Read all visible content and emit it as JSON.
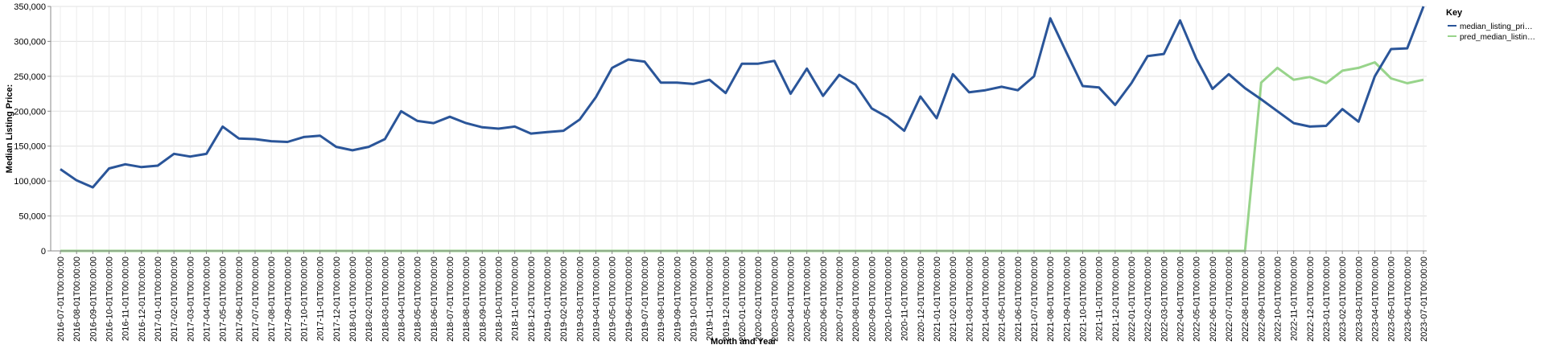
{
  "chart_data": {
    "type": "line",
    "xlabel": "Month and Year",
    "ylabel": "Median Listing Price:",
    "ylim": [
      0,
      350000
    ],
    "y_ticks": [
      "0",
      "50,000",
      "100,000",
      "150,000",
      "200,000",
      "250,000",
      "300,000",
      "350,000"
    ],
    "y_tick_values": [
      0,
      50000,
      100000,
      150000,
      200000,
      250000,
      300000,
      350000
    ],
    "grid": true,
    "legend": {
      "title": "Key",
      "placement": "top-right",
      "entries": [
        "median_listing_pri…",
        "pred_median_listin…"
      ]
    },
    "x": [
      "2016-07-01T00:00:00",
      "2016-08-01T00:00:00",
      "2016-09-01T00:00:00",
      "2016-10-01T00:00:00",
      "2016-11-01T00:00:00",
      "2016-12-01T00:00:00",
      "2017-01-01T00:00:00",
      "2017-02-01T00:00:00",
      "2017-03-01T00:00:00",
      "2017-04-01T00:00:00",
      "2017-05-01T00:00:00",
      "2017-06-01T00:00:00",
      "2017-07-01T00:00:00",
      "2017-08-01T00:00:00",
      "2017-09-01T00:00:00",
      "2017-10-01T00:00:00",
      "2017-11-01T00:00:00",
      "2017-12-01T00:00:00",
      "2018-01-01T00:00:00",
      "2018-02-01T00:00:00",
      "2018-03-01T00:00:00",
      "2018-04-01T00:00:00",
      "2018-05-01T00:00:00",
      "2018-06-01T00:00:00",
      "2018-07-01T00:00:00",
      "2018-08-01T00:00:00",
      "2018-09-01T00:00:00",
      "2018-10-01T00:00:00",
      "2018-11-01T00:00:00",
      "2018-12-01T00:00:00",
      "2019-01-01T00:00:00",
      "2019-02-01T00:00:00",
      "2019-03-01T00:00:00",
      "2019-04-01T00:00:00",
      "2019-05-01T00:00:00",
      "2019-06-01T00:00:00",
      "2019-07-01T00:00:00",
      "2019-08-01T00:00:00",
      "2019-09-01T00:00:00",
      "2019-10-01T00:00:00",
      "2019-11-01T00:00:00",
      "2019-12-01T00:00:00",
      "2020-01-01T00:00:00",
      "2020-02-01T00:00:00",
      "2020-03-01T00:00:00",
      "2020-04-01T00:00:00",
      "2020-05-01T00:00:00",
      "2020-06-01T00:00:00",
      "2020-07-01T00:00:00",
      "2020-08-01T00:00:00",
      "2020-09-01T00:00:00",
      "2020-10-01T00:00:00",
      "2020-11-01T00:00:00",
      "2020-12-01T00:00:00",
      "2021-01-01T00:00:00",
      "2021-02-01T00:00:00",
      "2021-03-01T00:00:00",
      "2021-04-01T00:00:00",
      "2021-05-01T00:00:00",
      "2021-06-01T00:00:00",
      "2021-07-01T00:00:00",
      "2021-08-01T00:00:00",
      "2021-09-01T00:00:00",
      "2021-10-01T00:00:00",
      "2021-11-01T00:00:00",
      "2021-12-01T00:00:00",
      "2022-01-01T00:00:00",
      "2022-02-01T00:00:00",
      "2022-03-01T00:00:00",
      "2022-04-01T00:00:00",
      "2022-05-01T00:00:00",
      "2022-06-01T00:00:00",
      "2022-07-01T00:00:00",
      "2022-08-01T00:00:00",
      "2022-09-01T00:00:00",
      "2022-10-01T00:00:00",
      "2022-11-01T00:00:00",
      "2022-12-01T00:00:00",
      "2023-01-01T00:00:00",
      "2023-02-01T00:00:00",
      "2023-03-01T00:00:00",
      "2023-04-01T00:00:00",
      "2023-05-01T00:00:00",
      "2023-06-01T00:00:00",
      "2023-07-01T00:00:00"
    ],
    "series": [
      {
        "name": "median_listing_pri…",
        "color": "#2a5599",
        "values": [
          117000,
          101000,
          91000,
          118000,
          124000,
          120000,
          122000,
          139000,
          135000,
          139000,
          178000,
          161000,
          160000,
          157000,
          156000,
          163000,
          165000,
          149000,
          144000,
          149000,
          160000,
          200000,
          186000,
          183000,
          192000,
          183000,
          177000,
          175000,
          178000,
          168000,
          170000,
          172000,
          188000,
          220000,
          262000,
          274000,
          271000,
          241000,
          241000,
          239000,
          245000,
          226000,
          268000,
          268000,
          272000,
          225000,
          261000,
          222000,
          252000,
          238000,
          204000,
          191000,
          172000,
          221000,
          190000,
          253000,
          227000,
          230000,
          235000,
          230000,
          250000,
          333000,
          284000,
          236000,
          234000,
          209000,
          240000,
          279000,
          282000,
          330000,
          275000,
          232000,
          253000,
          233000,
          217000,
          200000,
          183000,
          178000,
          179000,
          203000,
          185000,
          250000,
          289000,
          290000,
          350000
        ]
      },
      {
        "name": "pred_median_listin…",
        "color": "#98d48b",
        "values": [
          0,
          0,
          0,
          0,
          0,
          0,
          0,
          0,
          0,
          0,
          0,
          0,
          0,
          0,
          0,
          0,
          0,
          0,
          0,
          0,
          0,
          0,
          0,
          0,
          0,
          0,
          0,
          0,
          0,
          0,
          0,
          0,
          0,
          0,
          0,
          0,
          0,
          0,
          0,
          0,
          0,
          0,
          0,
          0,
          0,
          0,
          0,
          0,
          0,
          0,
          0,
          0,
          0,
          0,
          0,
          0,
          0,
          0,
          0,
          0,
          0,
          0,
          0,
          0,
          0,
          0,
          0,
          0,
          0,
          0,
          0,
          0,
          0,
          0,
          241000,
          262000,
          245000,
          249000,
          240000,
          258000,
          262000,
          270000,
          247000,
          240000,
          245000
        ]
      }
    ]
  }
}
